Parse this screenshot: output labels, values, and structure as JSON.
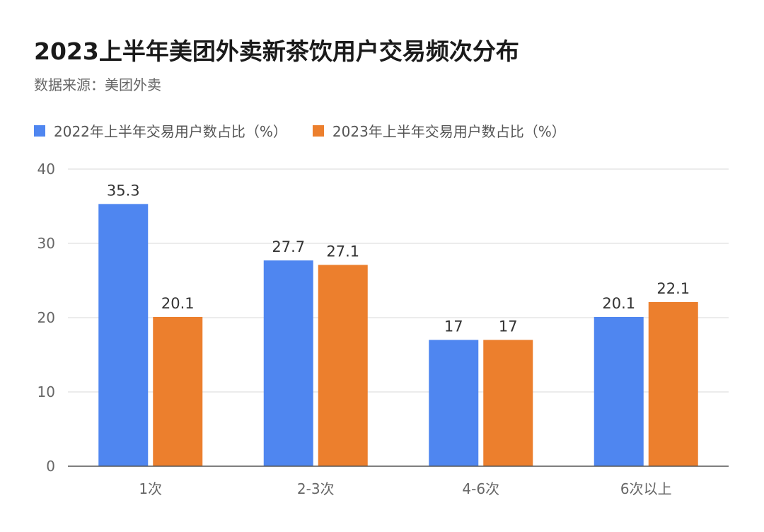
{
  "title": "2023上半年美团外卖新茶饮用户交易频次分布",
  "subtitle": "数据来源：美团外卖",
  "colors": {
    "series1": "#4f86f0",
    "series2": "#ec7f2d",
    "grid": "#d9d9d9",
    "axis": "#555555"
  },
  "chart_data": {
    "type": "bar",
    "categories": [
      "1次",
      "2-3次",
      "4-6次",
      "6次以上"
    ],
    "series": [
      {
        "name": "2022年上半年交易用户数占比（%）",
        "values": [
          35.3,
          27.7,
          17,
          20.1
        ],
        "labels": [
          "35.3",
          "27.7",
          "17",
          "20.1"
        ]
      },
      {
        "name": "2023年上半年交易用户数占比（%）",
        "values": [
          20.1,
          27.1,
          17,
          22.1
        ],
        "labels": [
          "20.1",
          "27.1",
          "17",
          "22.1"
        ]
      }
    ],
    "ylim": [
      0,
      40
    ],
    "yticks": [
      "0",
      "10",
      "20",
      "30",
      "40"
    ],
    "grid": true,
    "legend": "top-left"
  }
}
